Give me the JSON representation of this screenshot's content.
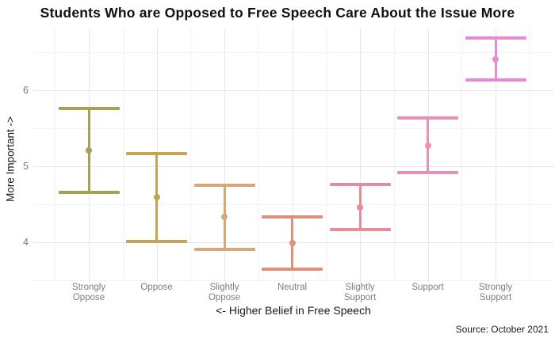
{
  "title": "Students Who are Opposed to Free Speech Care About the Issue More",
  "caption": "Source: October 2021",
  "chart_data": {
    "type": "scatter",
    "subtype": "pointrange-errorbar",
    "title": "Students Who are Opposed to Free Speech Care About the Issue More",
    "xlabel": "<- Higher Belief in Free Speech",
    "ylabel": "More Important ->",
    "legend_position": "none",
    "grid": true,
    "categories": [
      "Strongly\nOppose",
      "Oppose",
      "Slightly\nOppose",
      "Neutral",
      "Slightly\nSupport",
      "Support",
      "Strongly\nSupport"
    ],
    "points": [
      {
        "category": "Strongly Oppose",
        "mean": 5.21,
        "ci_low": 4.66,
        "ci_high": 5.76,
        "color": "#a5a351"
      },
      {
        "category": "Oppose",
        "mean": 4.59,
        "ci_low": 4.01,
        "ci_high": 5.17,
        "color": "#c6a455"
      },
      {
        "category": "Slightly Oppose",
        "mean": 4.33,
        "ci_low": 3.91,
        "ci_high": 4.75,
        "color": "#d4a878"
      },
      {
        "category": "Neutral",
        "mean": 3.99,
        "ci_low": 3.65,
        "ci_high": 4.33,
        "color": "#dd9179"
      },
      {
        "category": "Slightly Support",
        "mean": 4.46,
        "ci_low": 4.17,
        "ci_high": 4.76,
        "color": "#e48e9b"
      },
      {
        "category": "Support",
        "mean": 5.27,
        "ci_low": 4.92,
        "ci_high": 5.63,
        "color": "#ec8fb4"
      },
      {
        "category": "Strongly Support",
        "mean": 6.4,
        "ci_low": 6.13,
        "ci_high": 6.68,
        "color": "#e98ad6"
      }
    ],
    "yticks": [
      4,
      5,
      6
    ],
    "ylim": [
      3.48,
      6.81
    ]
  },
  "colors": {
    "background": "#ffffff",
    "grid_major": "#e7e7e7",
    "grid_minor": "#f2f2f2",
    "tick_label": "#7d7d7d",
    "text": "#1a1a1a"
  }
}
